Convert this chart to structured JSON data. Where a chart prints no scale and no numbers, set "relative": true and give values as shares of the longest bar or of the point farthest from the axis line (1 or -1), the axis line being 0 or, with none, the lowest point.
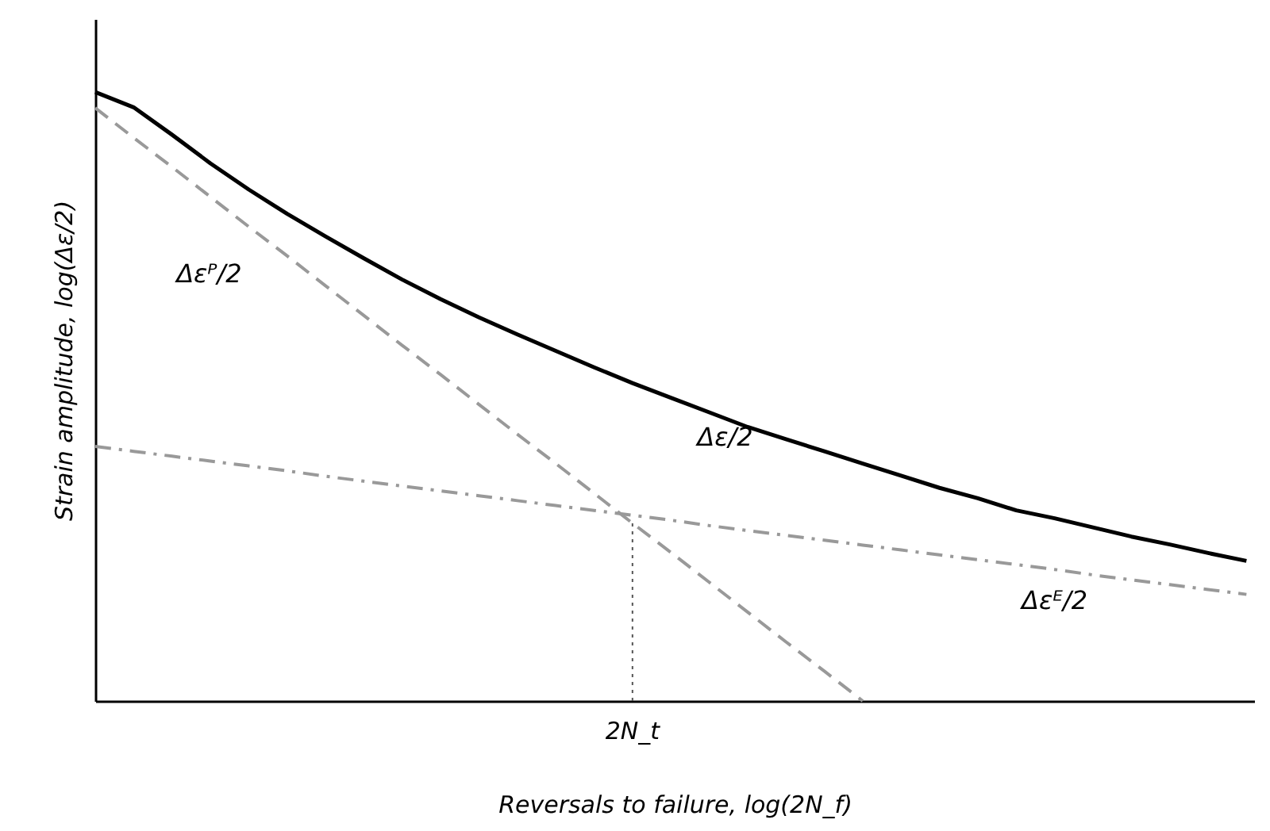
{
  "chart_data": {
    "type": "line",
    "relative": true,
    "xlabel": "Reversals to failure, log(2N_f)",
    "ylabel": "Strain amplitude, log(Δε/2)",
    "categories": [
      null,
      null,
      null,
      null,
      null,
      null,
      null,
      null,
      null,
      null,
      null,
      null,
      null,
      null,
      null,
      null,
      null,
      null,
      null,
      null,
      null,
      null,
      null,
      null,
      null,
      null,
      null,
      null,
      null,
      null,
      null
    ],
    "grid": false,
    "marker": "none",
    "series": [
      {
        "name": "Δε/2",
        "color": "#000000",
        "line_style": "solid",
        "values": [
          1.0,
          0.975,
          0.93,
          0.883,
          0.84,
          0.8,
          0.763,
          0.727,
          0.692,
          0.66,
          0.63,
          0.602,
          0.575,
          0.548,
          0.522,
          0.498,
          0.474,
          0.45,
          0.43,
          0.41,
          0.39,
          0.37,
          0.35,
          0.333,
          0.313,
          0.3,
          0.285,
          0.27,
          0.257,
          0.243,
          0.23
        ]
      },
      {
        "name": "Δεᴾ/2",
        "color": "#999999",
        "line_style": "dashed",
        "values": [
          0.974,
          0.925,
          0.877,
          0.828,
          0.779,
          0.731,
          0.682,
          0.633,
          0.584,
          0.536,
          0.487,
          0.438,
          0.39,
          0.341,
          0.292,
          0.244,
          0.195,
          0.146,
          0.097,
          0.049,
          0,
          null,
          null,
          null,
          null,
          null,
          null,
          null,
          null,
          null,
          null
        ]
      },
      {
        "name": "Δεᴱ/2",
        "color": "#999999",
        "line_style": "dashdot",
        "values": [
          0.418,
          0.41,
          0.402,
          0.394,
          0.386,
          0.378,
          0.369,
          0.361,
          0.353,
          0.345,
          0.337,
          0.329,
          0.321,
          0.313,
          0.305,
          0.297,
          0.288,
          0.28,
          0.272,
          0.264,
          0.256,
          0.248,
          0.24,
          0.232,
          0.224,
          0.216,
          0.207,
          0.199,
          0.191,
          0.183,
          0.175
        ]
      }
    ],
    "annotations": [
      "2N_t"
    ]
  }
}
